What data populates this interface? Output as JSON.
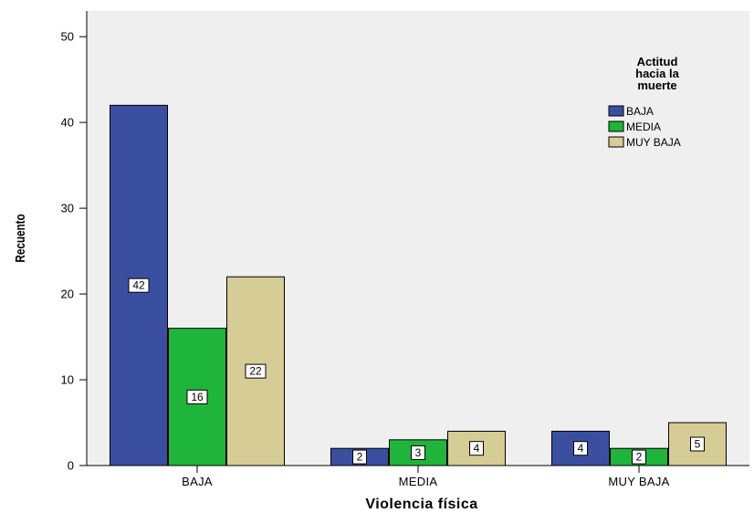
{
  "chart_data": {
    "type": "bar",
    "title": "",
    "xlabel": "Violencia física",
    "ylabel": "Recuento",
    "categories": [
      "BAJA",
      "MEDIA",
      "MUY BAJA"
    ],
    "series": [
      {
        "name": "BAJA",
        "values": [
          42,
          2,
          4
        ],
        "color": "#3b4fa1"
      },
      {
        "name": "MEDIA",
        "values": [
          16,
          3,
          2
        ],
        "color": "#1fb53b"
      },
      {
        "name": "MUY BAJA",
        "values": [
          22,
          4,
          5
        ],
        "color": "#d6cc95"
      }
    ],
    "ylim": [
      0,
      53
    ],
    "yticks": [
      0,
      10,
      20,
      30,
      40,
      50
    ],
    "grid": false,
    "plot_background": "#efefef",
    "legend": {
      "title_lines": [
        "Actitud",
        "hacia la",
        "muerte"
      ],
      "position": "top-right"
    }
  }
}
